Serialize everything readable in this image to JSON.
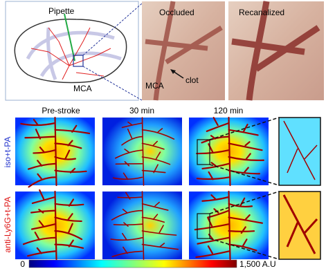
{
  "diagram": {
    "pipette_label": "Pipette",
    "mca_label": "MCA"
  },
  "photos": [
    {
      "title": "Occluded",
      "annotations": [
        "MCA",
        "clot"
      ]
    },
    {
      "title": "Recanalized"
    }
  ],
  "perfusion": {
    "columns": [
      "Pre-stroke",
      "30 min",
      "120 min"
    ],
    "rows": [
      {
        "label": "iso+t-PA",
        "color": "#2233cc"
      },
      {
        "label": "anti-Ly6G+t-PA",
        "color": "#dd1111"
      }
    ],
    "colorbar": {
      "min_label": "0",
      "max_label": "1,500 A.U"
    }
  }
}
